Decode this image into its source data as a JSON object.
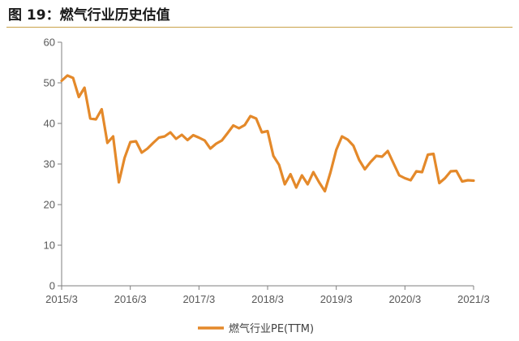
{
  "title": "图 19：燃气行业历史估值",
  "colors": {
    "series": "#E4892A",
    "axis": "#7f7f7f",
    "rule": "#c9a24a"
  },
  "chart_data": {
    "type": "line",
    "title": "图 19：燃气行业历史估值",
    "xlabel": "",
    "ylabel": "",
    "ylim": [
      0,
      60
    ],
    "yticks": [
      0,
      10,
      20,
      30,
      40,
      50,
      60
    ],
    "xticks": [
      "2015/3",
      "2016/3",
      "2017/3",
      "2018/3",
      "2019/3",
      "2020/3",
      "2021/3"
    ],
    "xlim": [
      "2015/3",
      "2021/3"
    ],
    "grid": false,
    "legend": "bottom-center",
    "series": [
      {
        "name": "燃气行业PE(TTM)",
        "x": [
          "2015/3",
          "2015/4",
          "2015/5",
          "2015/6",
          "2015/7",
          "2015/8",
          "2015/9",
          "2015/10",
          "2015/11",
          "2015/12",
          "2016/1",
          "2016/2",
          "2016/3",
          "2016/4",
          "2016/5",
          "2016/6",
          "2016/7",
          "2016/8",
          "2016/9",
          "2016/10",
          "2016/11",
          "2016/12",
          "2017/1",
          "2017/2",
          "2017/3",
          "2017/4",
          "2017/5",
          "2017/6",
          "2017/7",
          "2017/8",
          "2017/9",
          "2017/10",
          "2017/11",
          "2017/12",
          "2018/1",
          "2018/2",
          "2018/3",
          "2018/4",
          "2018/5",
          "2018/6",
          "2018/7",
          "2018/8",
          "2018/9",
          "2018/10",
          "2018/11",
          "2018/12",
          "2019/1",
          "2019/2",
          "2019/3",
          "2019/4",
          "2019/5",
          "2019/6",
          "2019/7",
          "2019/8",
          "2019/9",
          "2019/10",
          "2019/11",
          "2019/12",
          "2020/1",
          "2020/2",
          "2020/3",
          "2020/4",
          "2020/5",
          "2020/6",
          "2020/7",
          "2020/8",
          "2020/9",
          "2020/10",
          "2020/11",
          "2020/12",
          "2021/1",
          "2021/2",
          "2021/3"
        ],
        "values": [
          50.5,
          51.8,
          51.2,
          46.5,
          48.8,
          41.2,
          41.0,
          43.5,
          35.2,
          36.8,
          25.5,
          31.5,
          35.4,
          35.6,
          32.8,
          33.8,
          35.2,
          36.5,
          36.8,
          37.8,
          36.2,
          37.2,
          35.9,
          37.1,
          36.5,
          35.8,
          33.8,
          35.0,
          35.8,
          37.6,
          39.5,
          38.8,
          39.6,
          41.8,
          41.2,
          37.8,
          38.1,
          32.0,
          29.8,
          25.0,
          27.5,
          24.2,
          27.2,
          25.0,
          28.0,
          25.5,
          23.3,
          28.0,
          33.5,
          36.8,
          36.0,
          34.5,
          31.0,
          28.7,
          30.5,
          32.0,
          31.8,
          33.2,
          30.2,
          27.2,
          26.5,
          26.0,
          28.2,
          28.0,
          32.3,
          32.5,
          25.3,
          26.5,
          28.2,
          28.3,
          25.7,
          26.0,
          25.9
        ]
      }
    ]
  }
}
